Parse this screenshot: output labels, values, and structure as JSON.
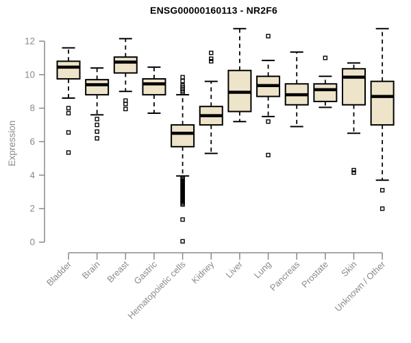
{
  "chart_data": {
    "type": "boxplot",
    "title": "ENSG00000160113 - NR2F6",
    "ylabel": "Expression",
    "xlabel": "",
    "ylim": [
      0,
      13.2
    ],
    "yticks": [
      0,
      2,
      4,
      6,
      8,
      10,
      12
    ],
    "grid": false,
    "legend": "none",
    "colors": {
      "box_fill": "#ede4c9",
      "box_stroke": "#000000",
      "median": "#000000",
      "whisker": "#000000",
      "outlier": "#000000",
      "axis": "#888888",
      "tick_label": "#8a8a8a",
      "title": "#000000",
      "background": "#ffffff"
    },
    "categories": [
      "Bladder",
      "Brain",
      "Breast",
      "Gastric",
      "Hematopoietic cells",
      "Kidney",
      "Liver",
      "Lung",
      "Pancreas",
      "Prostate",
      "Skin",
      "Unknown / Other"
    ],
    "series": [
      {
        "category": "Bladder",
        "whisker_low": 8.6,
        "q1": 9.75,
        "median": 10.45,
        "q3": 10.8,
        "whisker_high": 11.6,
        "outliers": [
          8.0,
          7.7,
          6.55,
          5.35
        ]
      },
      {
        "category": "Brain",
        "whisker_low": 7.6,
        "q1": 8.8,
        "median": 9.4,
        "q3": 9.7,
        "whisker_high": 10.4,
        "outliers": [
          7.35,
          7.0,
          6.6,
          6.2
        ]
      },
      {
        "category": "Breast",
        "whisker_low": 9.0,
        "q1": 10.1,
        "median": 10.75,
        "q3": 11.05,
        "whisker_high": 12.15,
        "outliers": [
          8.45,
          8.25,
          7.95
        ]
      },
      {
        "category": "Gastric",
        "whisker_low": 7.7,
        "q1": 8.8,
        "median": 9.45,
        "q3": 9.75,
        "whisker_high": 10.45,
        "outliers": []
      },
      {
        "category": "Hematopoietic cells",
        "whisker_low": 3.95,
        "q1": 5.7,
        "median": 6.5,
        "q3": 7.0,
        "whisker_high": 8.8,
        "outliers": [
          9.85,
          9.62,
          9.35,
          9.25,
          9.15,
          9.05,
          8.95,
          3.85,
          3.77,
          3.69,
          3.61,
          3.53,
          3.45,
          3.37,
          3.29,
          3.21,
          3.13,
          3.05,
          2.97,
          2.89,
          2.81,
          2.73,
          2.65,
          2.57,
          2.49,
          2.41,
          2.33,
          2.25,
          1.35,
          0.05
        ]
      },
      {
        "category": "Kidney",
        "whisker_low": 5.3,
        "q1": 7.0,
        "median": 7.55,
        "q3": 8.1,
        "whisker_high": 9.6,
        "outliers": [
          11.3,
          10.95,
          10.8
        ]
      },
      {
        "category": "Liver",
        "whisker_low": 7.2,
        "q1": 7.8,
        "median": 8.95,
        "q3": 10.25,
        "whisker_high": 12.75,
        "outliers": []
      },
      {
        "category": "Lung",
        "whisker_low": 7.5,
        "q1": 8.7,
        "median": 9.35,
        "q3": 9.9,
        "whisker_high": 10.85,
        "outliers": [
          12.3,
          7.2,
          5.2
        ]
      },
      {
        "category": "Pancreas",
        "whisker_low": 6.9,
        "q1": 8.2,
        "median": 8.8,
        "q3": 9.45,
        "whisker_high": 11.35,
        "outliers": []
      },
      {
        "category": "Prostate",
        "whisker_low": 8.05,
        "q1": 8.4,
        "median": 9.1,
        "q3": 9.45,
        "whisker_high": 9.9,
        "outliers": [
          11.0
        ]
      },
      {
        "category": "Skin",
        "whisker_low": 6.5,
        "q1": 8.2,
        "median": 9.85,
        "q3": 10.35,
        "whisker_high": 10.7,
        "outliers": [
          4.3,
          4.15
        ]
      },
      {
        "category": "Unknown / Other",
        "whisker_low": 3.7,
        "q1": 7.0,
        "median": 8.7,
        "q3": 9.6,
        "whisker_high": 12.75,
        "outliers": [
          3.1,
          2.0
        ]
      }
    ]
  }
}
